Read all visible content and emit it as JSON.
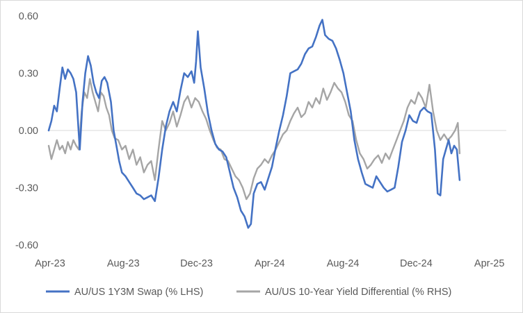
{
  "chart_data": {
    "type": "line",
    "grid": false,
    "legend_position": "bottom",
    "y_left": {
      "ticks": [
        "0.60",
        "0.30",
        "0.00",
        "-0.30",
        "-0.60"
      ],
      "tick_values": [
        0.6,
        0.3,
        0.0,
        -0.3,
        -0.6
      ],
      "ylim": [
        -0.6,
        0.6
      ]
    },
    "x": {
      "ticks": [
        "Apr-23",
        "Aug-23",
        "Dec-23",
        "Apr-24",
        "Aug-24",
        "Dec-24",
        "Apr-25"
      ],
      "range_months": [
        0,
        25
      ]
    },
    "series": [
      {
        "name": "AU/US 1Y3M Swap (% LHS)",
        "color": "#4472c4",
        "points": [
          [
            0.0,
            0.0
          ],
          [
            0.15,
            0.05
          ],
          [
            0.3,
            0.13
          ],
          [
            0.45,
            0.1
          ],
          [
            0.6,
            0.22
          ],
          [
            0.75,
            0.33
          ],
          [
            0.9,
            0.27
          ],
          [
            1.05,
            0.32
          ],
          [
            1.2,
            0.3
          ],
          [
            1.35,
            0.27
          ],
          [
            1.5,
            0.2
          ],
          [
            1.6,
            0.05
          ],
          [
            1.7,
            -0.1
          ],
          [
            1.85,
            0.15
          ],
          [
            2.0,
            0.3
          ],
          [
            2.15,
            0.39
          ],
          [
            2.3,
            0.34
          ],
          [
            2.45,
            0.25
          ],
          [
            2.6,
            0.2
          ],
          [
            2.75,
            0.17
          ],
          [
            2.9,
            0.26
          ],
          [
            3.05,
            0.28
          ],
          [
            3.2,
            0.25
          ],
          [
            3.4,
            0.15
          ],
          [
            3.55,
            0.0
          ],
          [
            3.7,
            -0.08
          ],
          [
            3.85,
            -0.16
          ],
          [
            4.0,
            -0.22
          ],
          [
            4.2,
            -0.24
          ],
          [
            4.4,
            -0.27
          ],
          [
            4.6,
            -0.3
          ],
          [
            4.8,
            -0.33
          ],
          [
            5.0,
            -0.34
          ],
          [
            5.2,
            -0.36
          ],
          [
            5.4,
            -0.35
          ],
          [
            5.6,
            -0.34
          ],
          [
            5.8,
            -0.37
          ],
          [
            6.0,
            -0.25
          ],
          [
            6.2,
            -0.1
          ],
          [
            6.4,
            0.02
          ],
          [
            6.6,
            0.1
          ],
          [
            6.8,
            0.15
          ],
          [
            7.0,
            0.1
          ],
          [
            7.2,
            0.21
          ],
          [
            7.4,
            0.3
          ],
          [
            7.6,
            0.28
          ],
          [
            7.8,
            0.31
          ],
          [
            7.95,
            0.25
          ],
          [
            8.05,
            0.36
          ],
          [
            8.15,
            0.52
          ],
          [
            8.3,
            0.33
          ],
          [
            8.5,
            0.22
          ],
          [
            8.7,
            0.09
          ],
          [
            8.9,
            0.0
          ],
          [
            9.1,
            -0.07
          ],
          [
            9.3,
            -0.1
          ],
          [
            9.5,
            -0.11
          ],
          [
            9.7,
            -0.14
          ],
          [
            9.9,
            -0.22
          ],
          [
            10.1,
            -0.3
          ],
          [
            10.3,
            -0.35
          ],
          [
            10.5,
            -0.42
          ],
          [
            10.7,
            -0.45
          ],
          [
            10.9,
            -0.51
          ],
          [
            11.05,
            -0.49
          ],
          [
            11.2,
            -0.33
          ],
          [
            11.4,
            -0.28
          ],
          [
            11.6,
            -0.27
          ],
          [
            11.8,
            -0.31
          ],
          [
            12.0,
            -0.25
          ],
          [
            12.2,
            -0.19
          ],
          [
            12.4,
            -0.09
          ],
          [
            12.6,
            0.0
          ],
          [
            12.8,
            0.08
          ],
          [
            13.0,
            0.18
          ],
          [
            13.2,
            0.3
          ],
          [
            13.4,
            0.31
          ],
          [
            13.6,
            0.32
          ],
          [
            13.8,
            0.35
          ],
          [
            14.0,
            0.4
          ],
          [
            14.2,
            0.43
          ],
          [
            14.4,
            0.44
          ],
          [
            14.6,
            0.49
          ],
          [
            14.8,
            0.55
          ],
          [
            14.95,
            0.58
          ],
          [
            15.1,
            0.5
          ],
          [
            15.3,
            0.48
          ],
          [
            15.5,
            0.47
          ],
          [
            15.7,
            0.43
          ],
          [
            15.9,
            0.37
          ],
          [
            16.1,
            0.3
          ],
          [
            16.3,
            0.2
          ],
          [
            16.5,
            0.1
          ],
          [
            16.7,
            -0.05
          ],
          [
            16.9,
            -0.15
          ],
          [
            17.1,
            -0.22
          ],
          [
            17.3,
            -0.28
          ],
          [
            17.5,
            -0.29
          ],
          [
            17.7,
            -0.3
          ],
          [
            17.9,
            -0.24
          ],
          [
            18.1,
            -0.27
          ],
          [
            18.3,
            -0.3
          ],
          [
            18.5,
            -0.32
          ],
          [
            18.7,
            -0.31
          ],
          [
            18.9,
            -0.3
          ],
          [
            19.1,
            -0.19
          ],
          [
            19.3,
            -0.06
          ],
          [
            19.5,
            0.0
          ],
          [
            19.7,
            0.08
          ],
          [
            19.9,
            0.05
          ],
          [
            20.1,
            0.04
          ],
          [
            20.3,
            0.1
          ],
          [
            20.5,
            0.12
          ],
          [
            20.7,
            0.1
          ],
          [
            20.9,
            0.09
          ],
          [
            21.1,
            -0.1
          ],
          [
            21.25,
            -0.33
          ],
          [
            21.4,
            -0.34
          ],
          [
            21.55,
            -0.15
          ],
          [
            21.7,
            -0.1
          ],
          [
            21.85,
            -0.05
          ],
          [
            22.0,
            -0.12
          ],
          [
            22.15,
            -0.08
          ],
          [
            22.3,
            -0.1
          ],
          [
            22.45,
            -0.26
          ]
        ]
      },
      {
        "name": "AU/US 10-Year Yield Differential (% RHS)",
        "color": "#a5a5a5",
        "points": [
          [
            0.0,
            -0.08
          ],
          [
            0.15,
            -0.15
          ],
          [
            0.3,
            -0.1
          ],
          [
            0.45,
            -0.05
          ],
          [
            0.6,
            -0.1
          ],
          [
            0.75,
            -0.08
          ],
          [
            0.9,
            -0.12
          ],
          [
            1.05,
            -0.06
          ],
          [
            1.2,
            -0.1
          ],
          [
            1.35,
            -0.05
          ],
          [
            1.5,
            -0.08
          ],
          [
            1.65,
            -0.1
          ],
          [
            1.8,
            0.1
          ],
          [
            1.95,
            0.2
          ],
          [
            2.1,
            0.17
          ],
          [
            2.25,
            0.27
          ],
          [
            2.4,
            0.2
          ],
          [
            2.55,
            0.15
          ],
          [
            2.7,
            0.1
          ],
          [
            2.85,
            0.2
          ],
          [
            3.0,
            0.18
          ],
          [
            3.15,
            0.12
          ],
          [
            3.3,
            0.08
          ],
          [
            3.45,
            0.0
          ],
          [
            3.6,
            -0.04
          ],
          [
            3.8,
            -0.05
          ],
          [
            4.0,
            -0.1
          ],
          [
            4.2,
            -0.08
          ],
          [
            4.4,
            -0.15
          ],
          [
            4.6,
            -0.1
          ],
          [
            4.8,
            -0.18
          ],
          [
            5.0,
            -0.14
          ],
          [
            5.2,
            -0.22
          ],
          [
            5.4,
            -0.18
          ],
          [
            5.6,
            -0.16
          ],
          [
            5.8,
            -0.26
          ],
          [
            6.0,
            -0.1
          ],
          [
            6.2,
            0.05
          ],
          [
            6.4,
            0.0
          ],
          [
            6.6,
            0.04
          ],
          [
            6.8,
            0.1
          ],
          [
            7.0,
            0.02
          ],
          [
            7.2,
            0.08
          ],
          [
            7.4,
            0.15
          ],
          [
            7.6,
            0.18
          ],
          [
            7.8,
            0.12
          ],
          [
            8.0,
            0.17
          ],
          [
            8.2,
            0.15
          ],
          [
            8.4,
            0.1
          ],
          [
            8.6,
            0.06
          ],
          [
            8.8,
            0.0
          ],
          [
            9.0,
            -0.05
          ],
          [
            9.2,
            -0.09
          ],
          [
            9.4,
            -0.1
          ],
          [
            9.6,
            -0.15
          ],
          [
            9.8,
            -0.16
          ],
          [
            10.0,
            -0.2
          ],
          [
            10.2,
            -0.24
          ],
          [
            10.4,
            -0.26
          ],
          [
            10.6,
            -0.3
          ],
          [
            10.8,
            -0.36
          ],
          [
            11.0,
            -0.33
          ],
          [
            11.2,
            -0.25
          ],
          [
            11.4,
            -0.2
          ],
          [
            11.6,
            -0.18
          ],
          [
            11.8,
            -0.15
          ],
          [
            12.0,
            -0.17
          ],
          [
            12.2,
            -0.13
          ],
          [
            12.4,
            -0.1
          ],
          [
            12.6,
            -0.06
          ],
          [
            12.8,
            -0.02
          ],
          [
            13.0,
            0.0
          ],
          [
            13.2,
            0.05
          ],
          [
            13.4,
            0.09
          ],
          [
            13.6,
            0.12
          ],
          [
            13.8,
            0.07
          ],
          [
            14.0,
            0.09
          ],
          [
            14.2,
            0.15
          ],
          [
            14.4,
            0.12
          ],
          [
            14.6,
            0.17
          ],
          [
            14.8,
            0.14
          ],
          [
            15.0,
            0.22
          ],
          [
            15.2,
            0.16
          ],
          [
            15.4,
            0.2
          ],
          [
            15.6,
            0.25
          ],
          [
            15.8,
            0.22
          ],
          [
            16.0,
            0.2
          ],
          [
            16.2,
            0.15
          ],
          [
            16.4,
            0.08
          ],
          [
            16.6,
            0.05
          ],
          [
            16.8,
            -0.05
          ],
          [
            17.0,
            -0.12
          ],
          [
            17.2,
            -0.15
          ],
          [
            17.4,
            -0.2
          ],
          [
            17.6,
            -0.18
          ],
          [
            17.8,
            -0.15
          ],
          [
            18.0,
            -0.13
          ],
          [
            18.2,
            -0.17
          ],
          [
            18.4,
            -0.12
          ],
          [
            18.6,
            -0.15
          ],
          [
            18.8,
            -0.1
          ],
          [
            19.0,
            -0.05
          ],
          [
            19.2,
            0.0
          ],
          [
            19.4,
            0.05
          ],
          [
            19.6,
            0.12
          ],
          [
            19.8,
            0.16
          ],
          [
            20.0,
            0.14
          ],
          [
            20.2,
            0.2
          ],
          [
            20.4,
            0.17
          ],
          [
            20.6,
            0.12
          ],
          [
            20.8,
            0.24
          ],
          [
            21.0,
            0.1
          ],
          [
            21.2,
            0.0
          ],
          [
            21.4,
            -0.05
          ],
          [
            21.6,
            -0.02
          ],
          [
            21.8,
            -0.05
          ],
          [
            22.0,
            -0.03
          ],
          [
            22.2,
            0.0
          ],
          [
            22.35,
            0.04
          ],
          [
            22.45,
            -0.12
          ]
        ]
      }
    ]
  }
}
